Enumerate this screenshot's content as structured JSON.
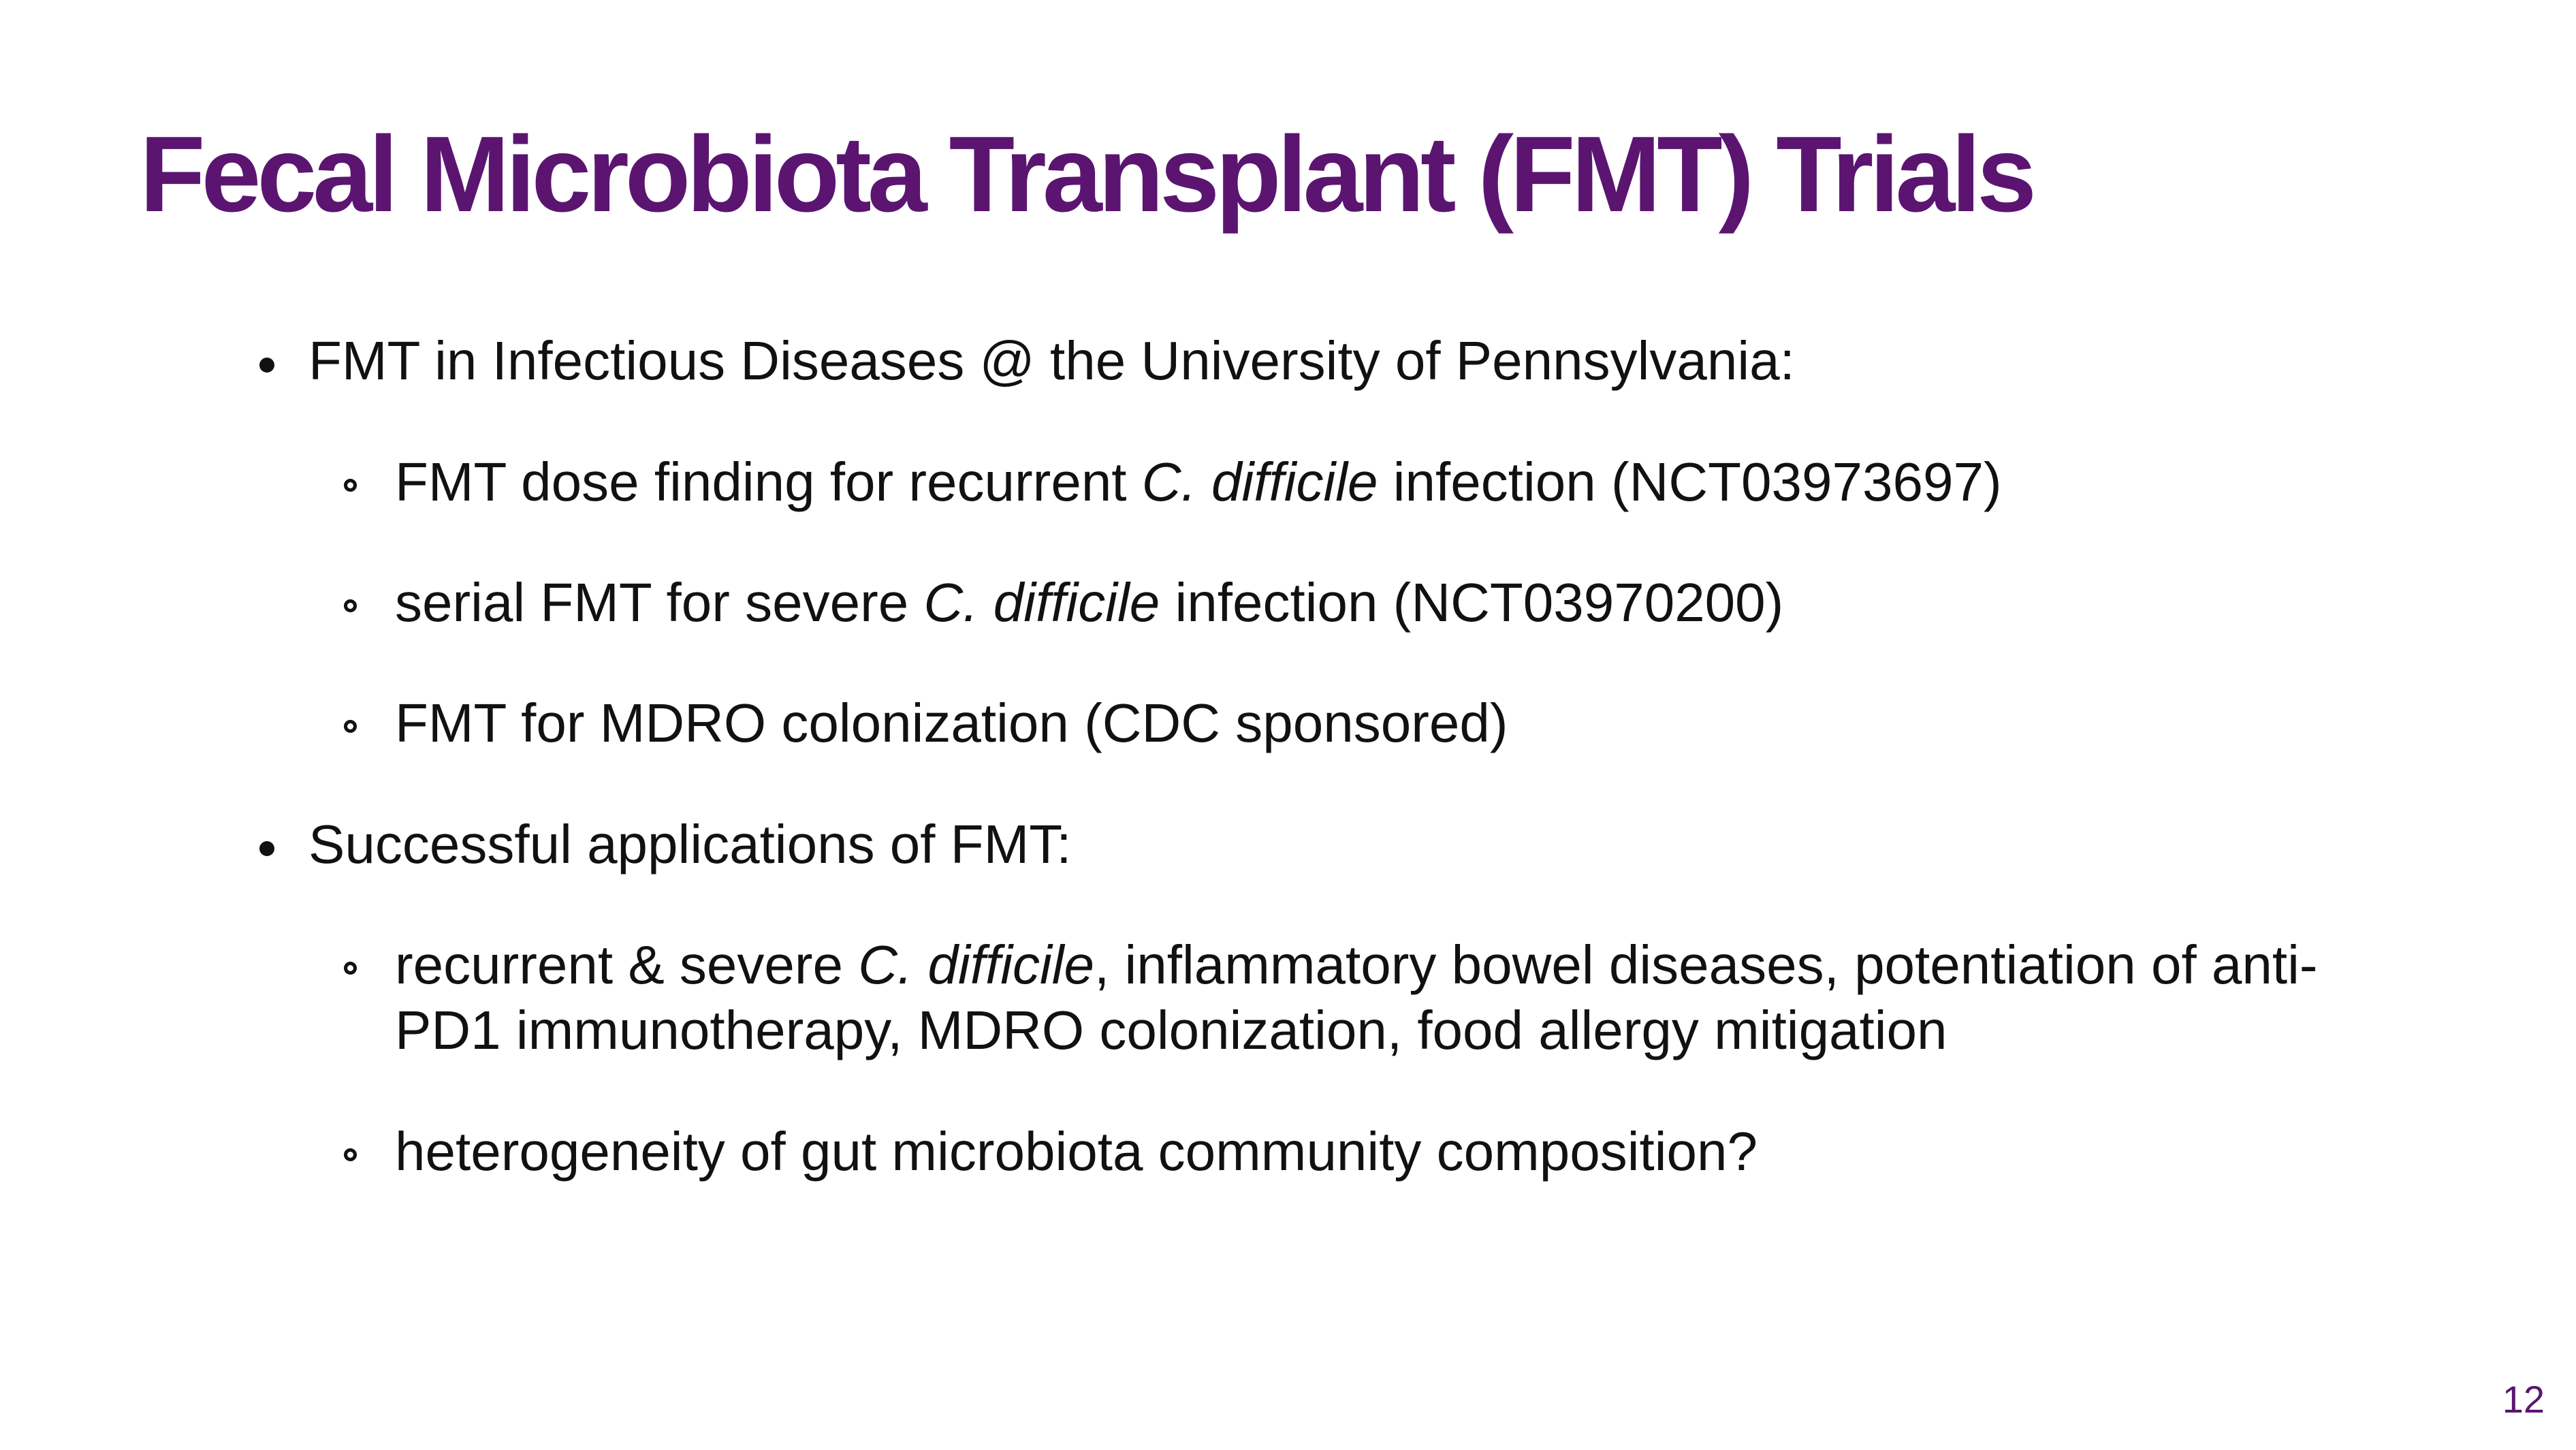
{
  "slide": {
    "title": "Fecal Microbiota Transplant (FMT) Trials",
    "page_number": "12",
    "colors": {
      "accent": "#5b1571",
      "text": "#111111",
      "background": "#ffffff"
    },
    "bullets": [
      {
        "text": "FMT in Infectious Diseases @ the University of Pennsylvania:",
        "sub": [
          {
            "pre": "FMT dose finding for recurrent ",
            "italic": "C. difficile",
            "post": " infection (NCT03973697)"
          },
          {
            "pre": "serial FMT for severe ",
            "italic": "C. difficile",
            "post": " infection (NCT03970200)"
          },
          {
            "pre": "FMT for MDRO colonization (CDC sponsored)",
            "italic": "",
            "post": ""
          }
        ]
      },
      {
        "text": "Successful applications of FMT:",
        "sub": [
          {
            "pre": "recurrent & severe ",
            "italic": "C. difficile",
            "post": ", inflammatory bowel diseases, potentiation of anti-",
            "line2": "PD1 immunotherapy, MDRO colonization, food allergy mitigation"
          },
          {
            "pre": "heterogeneity of gut microbiota community composition?",
            "italic": "",
            "post": ""
          }
        ]
      }
    ]
  }
}
